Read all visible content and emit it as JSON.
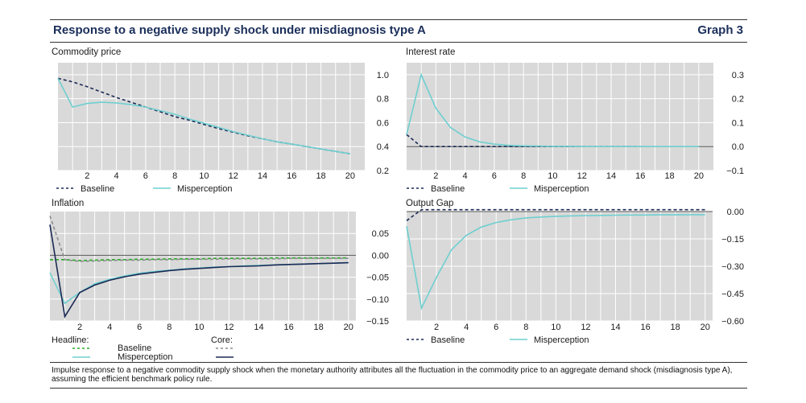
{
  "header": {
    "title": "Response to a negative supply shock under misdiagnosis type A",
    "graph_label": "Graph 3"
  },
  "footnote": "Impulse response to a negative commodity supply shock when the monetary authority attributes all the fluctuation in the commodity price to an aggregate demand shock (misdiagnosis type A), assuming the efficient benchmark policy rule.",
  "colors": {
    "navy": "#1b2a55",
    "light_blue": "#6fcfd0",
    "green": "#2aaa2a",
    "gray": "#8c8c8c",
    "plot_bg": "#d9d9d9"
  },
  "chart_data": [
    {
      "id": "commodity",
      "type": "line",
      "title": "Commodity price",
      "xlim": [
        0,
        21
      ],
      "ylim": [
        0.2,
        1.1
      ],
      "xticks": [
        2,
        4,
        6,
        8,
        10,
        12,
        14,
        16,
        18,
        20
      ],
      "yticks": [
        0.2,
        0.4,
        0.6,
        0.8,
        1.0
      ],
      "ytick_labels": [
        "0.2",
        "0.4",
        "0.6",
        "0.8",
        "1.0"
      ],
      "series": [
        {
          "name": "Baseline",
          "style": "dashed",
          "color": "#1b2a55",
          "x": [
            0,
            1,
            2,
            3,
            4,
            5,
            6,
            7,
            8,
            9,
            10,
            11,
            12,
            13,
            14,
            15,
            16,
            17,
            18,
            19,
            20
          ],
          "y": [
            0.97,
            0.94,
            0.9,
            0.855,
            0.81,
            0.77,
            0.73,
            0.69,
            0.65,
            0.62,
            0.585,
            0.55,
            0.52,
            0.49,
            0.465,
            0.44,
            0.42,
            0.4,
            0.38,
            0.36,
            0.34
          ]
        },
        {
          "name": "Misperception",
          "style": "solid",
          "color": "#6fcfd0",
          "x": [
            0,
            1,
            2,
            3,
            4,
            5,
            6,
            7,
            8,
            9,
            10,
            11,
            12,
            13,
            14,
            15,
            16,
            17,
            18,
            19,
            20
          ],
          "y": [
            0.97,
            0.73,
            0.76,
            0.77,
            0.765,
            0.75,
            0.73,
            0.7,
            0.67,
            0.63,
            0.595,
            0.56,
            0.525,
            0.495,
            0.465,
            0.44,
            0.42,
            0.4,
            0.38,
            0.36,
            0.34
          ]
        }
      ],
      "legend": [
        {
          "label": "Baseline",
          "style": "dashed",
          "color": "#1b2a55"
        },
        {
          "label": "Misperception",
          "style": "solid",
          "color": "#6fcfd0"
        }
      ]
    },
    {
      "id": "interest",
      "type": "line",
      "title": "Interest rate",
      "xlim": [
        0,
        21
      ],
      "ylim": [
        -0.1,
        0.35
      ],
      "zero_line": 0,
      "xticks": [
        2,
        4,
        6,
        8,
        10,
        12,
        14,
        16,
        18,
        20
      ],
      "yticks": [
        -0.1,
        0.0,
        0.1,
        0.2,
        0.3
      ],
      "ytick_labels": [
        "−0.1",
        "0.0",
        "0.1",
        "0.2",
        "0.3"
      ],
      "series": [
        {
          "name": "Baseline",
          "style": "dashed",
          "color": "#1b2a55",
          "x": [
            0,
            1,
            2,
            3,
            4,
            5,
            6,
            7,
            8,
            9,
            10,
            11,
            12,
            13,
            14,
            15,
            16
          ],
          "y": [
            0.05,
            0.0,
            0.0,
            0.0,
            0.0,
            0.0,
            0.0,
            0.0,
            0.0,
            0.0,
            0.0,
            0.0,
            0.0,
            0.0,
            0.0,
            0.0,
            0.0
          ]
        },
        {
          "name": "Misperception",
          "style": "solid",
          "color": "#6fcfd0",
          "x": [
            0,
            1,
            2,
            3,
            4,
            5,
            6,
            7,
            8,
            9,
            10,
            11,
            12,
            13,
            14,
            15,
            16,
            17,
            18,
            19,
            20
          ],
          "y": [
            0.05,
            0.3,
            0.16,
            0.08,
            0.04,
            0.02,
            0.01,
            0.005,
            0.003,
            0.002,
            0.001,
            0.001,
            0.0,
            0.0,
            0.0,
            0.0,
            0.0,
            0.0,
            0.0,
            0.0,
            0.0
          ]
        }
      ],
      "legend": [
        {
          "label": "Baseline",
          "style": "dashed",
          "color": "#1b2a55"
        },
        {
          "label": "Misperception",
          "style": "solid",
          "color": "#6fcfd0"
        }
      ]
    },
    {
      "id": "inflation",
      "type": "line",
      "title": "Inflation",
      "xlim": [
        0,
        20.5
      ],
      "ylim": [
        -0.15,
        0.1
      ],
      "zero_line": 0,
      "xticks": [
        2,
        4,
        6,
        8,
        10,
        12,
        14,
        16,
        18,
        20
      ],
      "yticks": [
        -0.15,
        -0.1,
        -0.05,
        0.0,
        0.05
      ],
      "ytick_labels": [
        "−0.15",
        "−0.10",
        "−0.05",
        "0.00",
        "0.05"
      ],
      "series": [
        {
          "name": "Headline Baseline",
          "style": "dashed",
          "color": "#2aaa2a",
          "x": [
            0,
            1,
            2,
            3,
            4,
            5,
            6,
            7,
            8,
            9,
            10,
            11,
            12,
            13,
            14,
            15,
            16,
            17,
            18,
            19,
            20
          ],
          "y": [
            -0.01,
            -0.01,
            -0.012,
            -0.011,
            -0.01,
            -0.01,
            -0.009,
            -0.009,
            -0.008,
            -0.008,
            -0.008,
            -0.007,
            -0.007,
            -0.007,
            -0.007,
            -0.006,
            -0.006,
            -0.006,
            -0.006,
            -0.006,
            -0.006
          ]
        },
        {
          "name": "Headline Misperception",
          "style": "solid",
          "color": "#6fcfd0",
          "x": [
            0,
            1,
            2,
            3,
            4,
            5,
            6,
            7,
            8,
            9,
            10,
            11,
            12,
            13,
            14,
            15,
            16,
            17,
            18,
            19,
            20
          ],
          "y": [
            -0.04,
            -0.11,
            -0.085,
            -0.065,
            -0.055,
            -0.047,
            -0.041,
            -0.037,
            -0.034,
            -0.031,
            -0.029,
            -0.027,
            -0.026,
            -0.024,
            -0.023,
            -0.022,
            -0.021,
            -0.02,
            -0.019,
            -0.018,
            -0.017
          ]
        },
        {
          "name": "Core Baseline",
          "style": "dashed",
          "color": "#8c8c8c",
          "x": [
            0,
            1,
            2,
            3,
            4,
            5,
            6,
            7,
            8,
            9,
            10,
            11,
            12,
            13,
            14,
            15,
            16,
            17,
            18,
            19,
            20
          ],
          "y": [
            0.09,
            -0.01,
            -0.014,
            -0.013,
            -0.012,
            -0.011,
            -0.011,
            -0.01,
            -0.01,
            -0.009,
            -0.009,
            -0.009,
            -0.008,
            -0.008,
            -0.008,
            -0.008,
            -0.007,
            -0.007,
            -0.007,
            -0.007,
            -0.007
          ]
        },
        {
          "name": "Core Misperception",
          "style": "solid",
          "color": "#1b2a55",
          "x": [
            0,
            1,
            2,
            3,
            4,
            5,
            6,
            7,
            8,
            9,
            10,
            11,
            12,
            13,
            14,
            15,
            16,
            17,
            18,
            19,
            20
          ],
          "y": [
            0.07,
            -0.14,
            -0.085,
            -0.068,
            -0.057,
            -0.049,
            -0.043,
            -0.039,
            -0.035,
            -0.032,
            -0.03,
            -0.028,
            -0.026,
            -0.025,
            -0.024,
            -0.022,
            -0.021,
            -0.02,
            -0.019,
            -0.018,
            -0.017
          ]
        }
      ],
      "legend_groups": {
        "headline_label": "Headline:",
        "core_label": "Core:"
      },
      "legend": [
        {
          "label": "Baseline",
          "style": "dashed",
          "color": "#2aaa2a"
        },
        {
          "label": "Misperception",
          "style": "solid",
          "color": "#6fcfd0"
        }
      ]
    },
    {
      "id": "output",
      "type": "line",
      "title": "Output Gap",
      "xlim": [
        0,
        20.5
      ],
      "ylim": [
        -0.6,
        0.0
      ],
      "zero_line": 0,
      "xticks": [
        2,
        4,
        6,
        8,
        10,
        12,
        14,
        16,
        18,
        20
      ],
      "yticks": [
        -0.6,
        -0.45,
        -0.3,
        -0.15,
        0.0
      ],
      "ytick_labels": [
        "−0.60",
        "−0.45",
        "−0.30",
        "−0.15",
        "0.00"
      ],
      "series": [
        {
          "name": "Baseline",
          "style": "dashed",
          "color": "#1b2a55",
          "x": [
            0,
            1,
            2,
            3,
            4,
            5,
            6,
            7,
            8,
            9,
            10,
            11,
            12,
            13,
            14,
            15,
            16,
            17,
            18,
            19,
            20
          ],
          "y": [
            -0.05,
            0.01,
            0.01,
            0.01,
            0.01,
            0.01,
            0.01,
            0.01,
            0.01,
            0.01,
            0.01,
            0.01,
            0.01,
            0.01,
            0.01,
            0.01,
            0.01,
            0.01,
            0.01,
            0.01,
            0.01
          ]
        },
        {
          "name": "Misperception",
          "style": "solid",
          "color": "#6fcfd0",
          "x": [
            0,
            1,
            2,
            3,
            4,
            5,
            6,
            7,
            8,
            9,
            10,
            11,
            12,
            13,
            14,
            15,
            16,
            17,
            18,
            19,
            20
          ],
          "y": [
            -0.08,
            -0.53,
            -0.36,
            -0.21,
            -0.13,
            -0.085,
            -0.06,
            -0.045,
            -0.035,
            -0.03,
            -0.026,
            -0.024,
            -0.022,
            -0.021,
            -0.02,
            -0.019,
            -0.019,
            -0.018,
            -0.018,
            -0.017,
            -0.017
          ]
        }
      ],
      "legend": [
        {
          "label": "Baseline",
          "style": "dashed",
          "color": "#1b2a55"
        },
        {
          "label": "Misperception",
          "style": "solid",
          "color": "#6fcfd0"
        }
      ]
    }
  ]
}
